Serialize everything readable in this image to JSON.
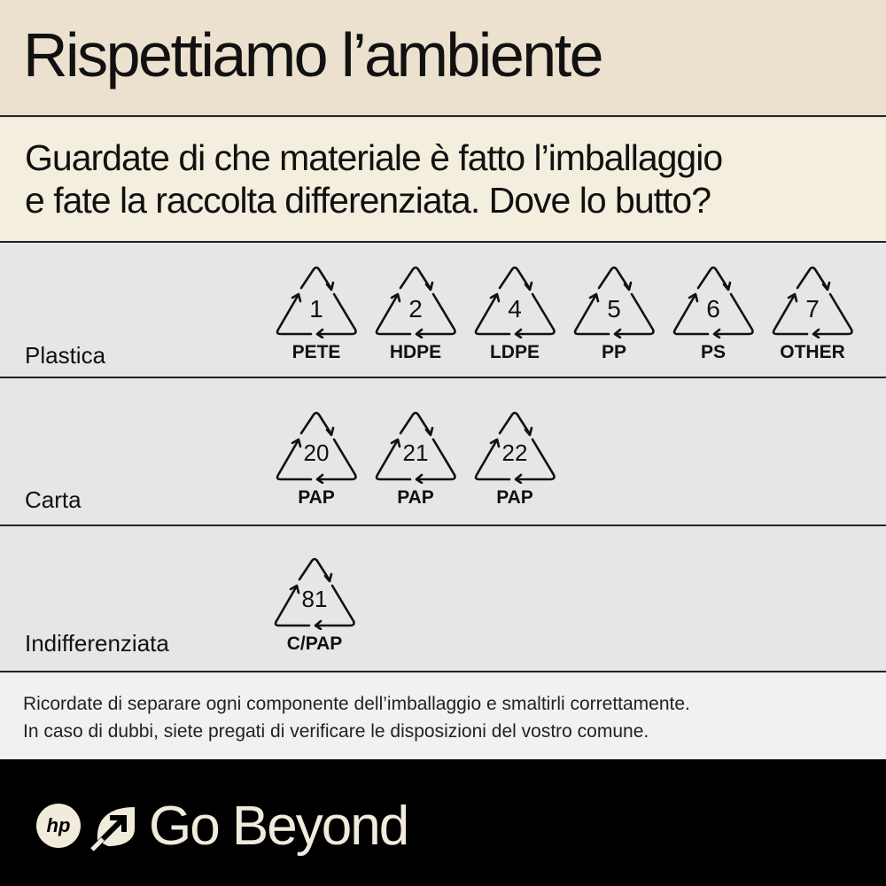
{
  "title": "Rispettiamo l’ambiente",
  "subtitle": [
    "Guardate di che materiale è fatto l’imballaggio",
    "e fate la raccolta differenziata.  Dove lo butto?"
  ],
  "rows": [
    {
      "label": "Plastica",
      "symbols": [
        {
          "num": "1",
          "code": "PETE"
        },
        {
          "num": "2",
          "code": "HDPE"
        },
        {
          "num": "4",
          "code": "LDPE"
        },
        {
          "num": "5",
          "code": "PP"
        },
        {
          "num": "6",
          "code": "PS"
        },
        {
          "num": "7",
          "code": "OTHER"
        }
      ]
    },
    {
      "label": "Carta",
      "symbols": [
        {
          "num": "20",
          "code": "PAP"
        },
        {
          "num": "21",
          "code": "PAP"
        },
        {
          "num": "22",
          "code": "PAP"
        }
      ]
    },
    {
      "label": "Indifferenziata",
      "symbols": [
        {
          "num": "81",
          "code": "C/PAP"
        }
      ]
    }
  ],
  "note": [
    "Ricordate di separare ogni componente dell’imballaggio e smaltirli correttamente.",
    "In caso di dubbi, siete pregati di verificare le disposizioni del vostro comune."
  ],
  "footer": {
    "logo": "hp",
    "brand": "Go Beyond"
  },
  "colors": {
    "header": "#ebe1ce",
    "subheader": "#f4eedf",
    "rows": "#e6e6e6",
    "footer": "#000000",
    "footer_text": "#f1ebdb"
  }
}
